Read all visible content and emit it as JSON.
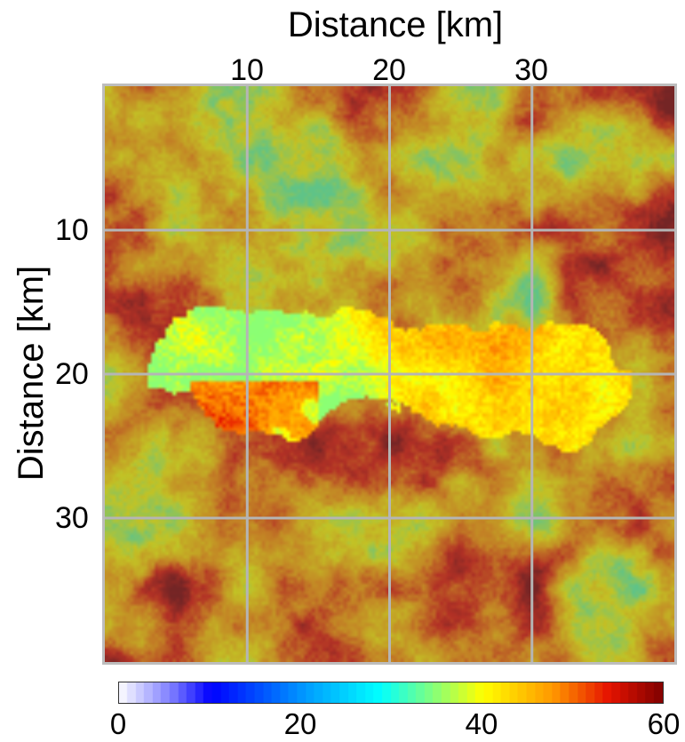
{
  "chart_data": {
    "type": "heatmap",
    "title": "",
    "xlabel": "Distance [km]",
    "ylabel": "Distance [km]",
    "xaxis_position": "top",
    "yaxis_direction": "top-to-bottom",
    "xlim": [
      0,
      40
    ],
    "ylim": [
      0,
      40
    ],
    "xticks": [
      10,
      20,
      30
    ],
    "yticks": [
      10,
      20,
      30
    ],
    "grid": true,
    "grid_color": "#b5b5b5",
    "colorbar": {
      "position": "bottom",
      "range": [
        0,
        60
      ],
      "ticks": [
        0,
        20,
        40,
        60
      ],
      "colormap": "jet-like (white, blue, cyan, yellow, red, dark red)"
    },
    "background_value_range": [
      33,
      60
    ],
    "rupture_patch": {
      "description": "highlighted elongated region centered near depth 20 km",
      "x_extent_km": [
        3,
        37
      ],
      "y_extent_km": [
        15,
        25
      ],
      "value_range": [
        35,
        60
      ],
      "west_part_values": "about 35 to 42 (yellow)",
      "east_part_values": "about 44 to 58 (orange to red)"
    }
  }
}
